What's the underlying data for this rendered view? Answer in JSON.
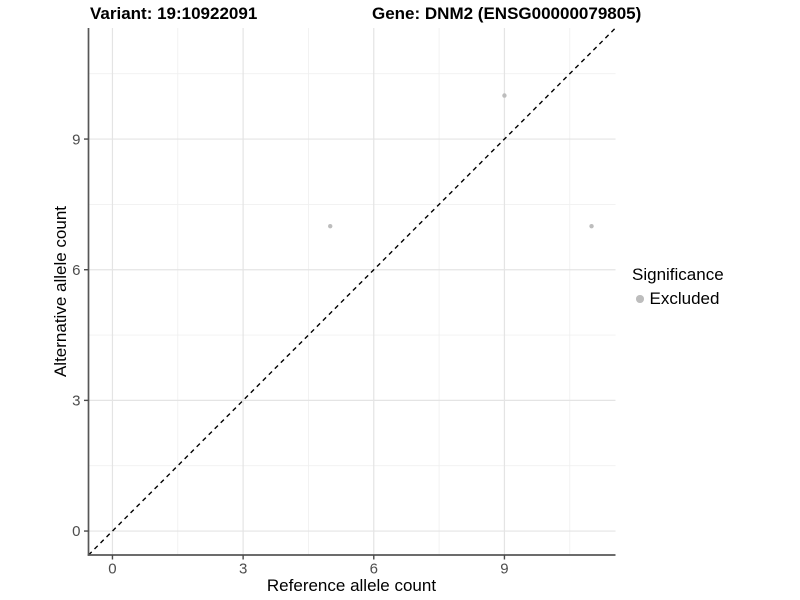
{
  "header": {
    "title_left": "Variant: 19:10922091",
    "title_right": "Gene: DNM2 (ENSG00000079805)"
  },
  "chart_data": {
    "type": "scatter",
    "title": "Variant: 19:10922091   Gene: DNM2 (ENSG00000079805)",
    "xlabel": "Reference allele count",
    "ylabel": "Alternative allele count",
    "xlim": [
      -0.55,
      11.55
    ],
    "ylim": [
      -0.55,
      11.55
    ],
    "x_major_ticks": [
      0,
      3,
      6,
      9
    ],
    "y_major_ticks": [
      0,
      3,
      6,
      9
    ],
    "x_minor_gridlines": [
      1.5,
      4.5,
      7.5,
      10.5
    ],
    "y_minor_gridlines": [
      1.5,
      4.5,
      7.5,
      10.5
    ],
    "grid": "major+minor",
    "series": [
      {
        "name": "Excluded",
        "color": "#bdbdbd",
        "points": [
          {
            "x": 5,
            "y": 7
          },
          {
            "x": 9,
            "y": 10
          },
          {
            "x": 11,
            "y": 7
          }
        ]
      }
    ],
    "reference_line": {
      "equation": "y = x",
      "style": "dashed",
      "color": "#000000"
    },
    "legend": {
      "title": "Significance",
      "position": "right",
      "entries": [
        {
          "label": "Excluded",
          "color": "#bdbdbd"
        }
      ]
    },
    "style_colors": {
      "grid_major": "#e4e4e4",
      "grid_minor": "#f0f0f0",
      "axis_line": "#575757",
      "tick_mark": "#4a4a4a",
      "tick_label": "#4d4d4d"
    }
  }
}
